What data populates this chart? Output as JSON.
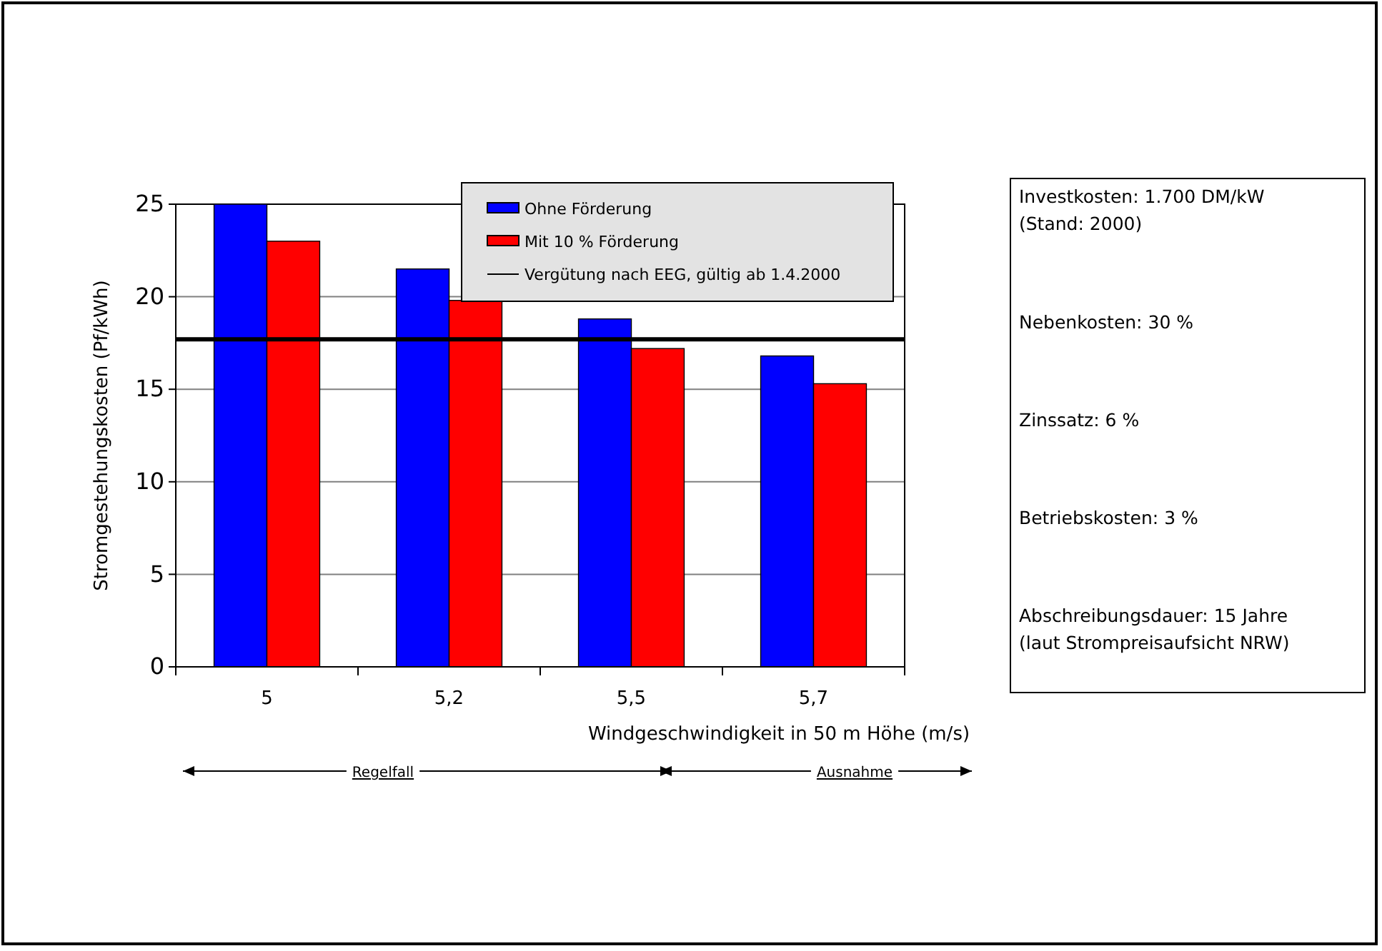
{
  "chart_data": {
    "type": "bar",
    "xlabel": "Windgeschwindigkeit in 50 m Höhe (m/s)",
    "ylabel": "Stromgestehungskosten (Pf/kWh)",
    "categories": [
      "5",
      "5,2",
      "5,5",
      "5,7"
    ],
    "series": [
      {
        "name": "Ohne Förderung",
        "color": "#0000ff",
        "values": [
          25,
          21.5,
          18.8,
          16.8
        ]
      },
      {
        "name": "Mit 10 % Förderung",
        "color": "#ff0000",
        "values": [
          23,
          19.8,
          17.2,
          15.3
        ]
      }
    ],
    "ylim": [
      0,
      25
    ],
    "yticks": [
      0,
      5,
      10,
      15,
      20,
      25
    ],
    "grid": "y",
    "legend": "top right",
    "ref_lines": [
      {
        "axis": "y",
        "value": 17.7,
        "label": "Vergütung nach EEG, gültig ab 1.4.2000",
        "color": "#000000"
      }
    ],
    "annotations": [
      "Regelfall",
      "Ausnahme",
      "Investkosten: 1.700 DM/kW\n(Stand: 2000)",
      "Nebenkosten: 30 %",
      "Zinssatz: 6 %",
      "Betriebskosten: 3 %",
      "Abschreibungsdauer: 15 Jahre\n(laut Strompreisaufsicht NRW)"
    ]
  }
}
